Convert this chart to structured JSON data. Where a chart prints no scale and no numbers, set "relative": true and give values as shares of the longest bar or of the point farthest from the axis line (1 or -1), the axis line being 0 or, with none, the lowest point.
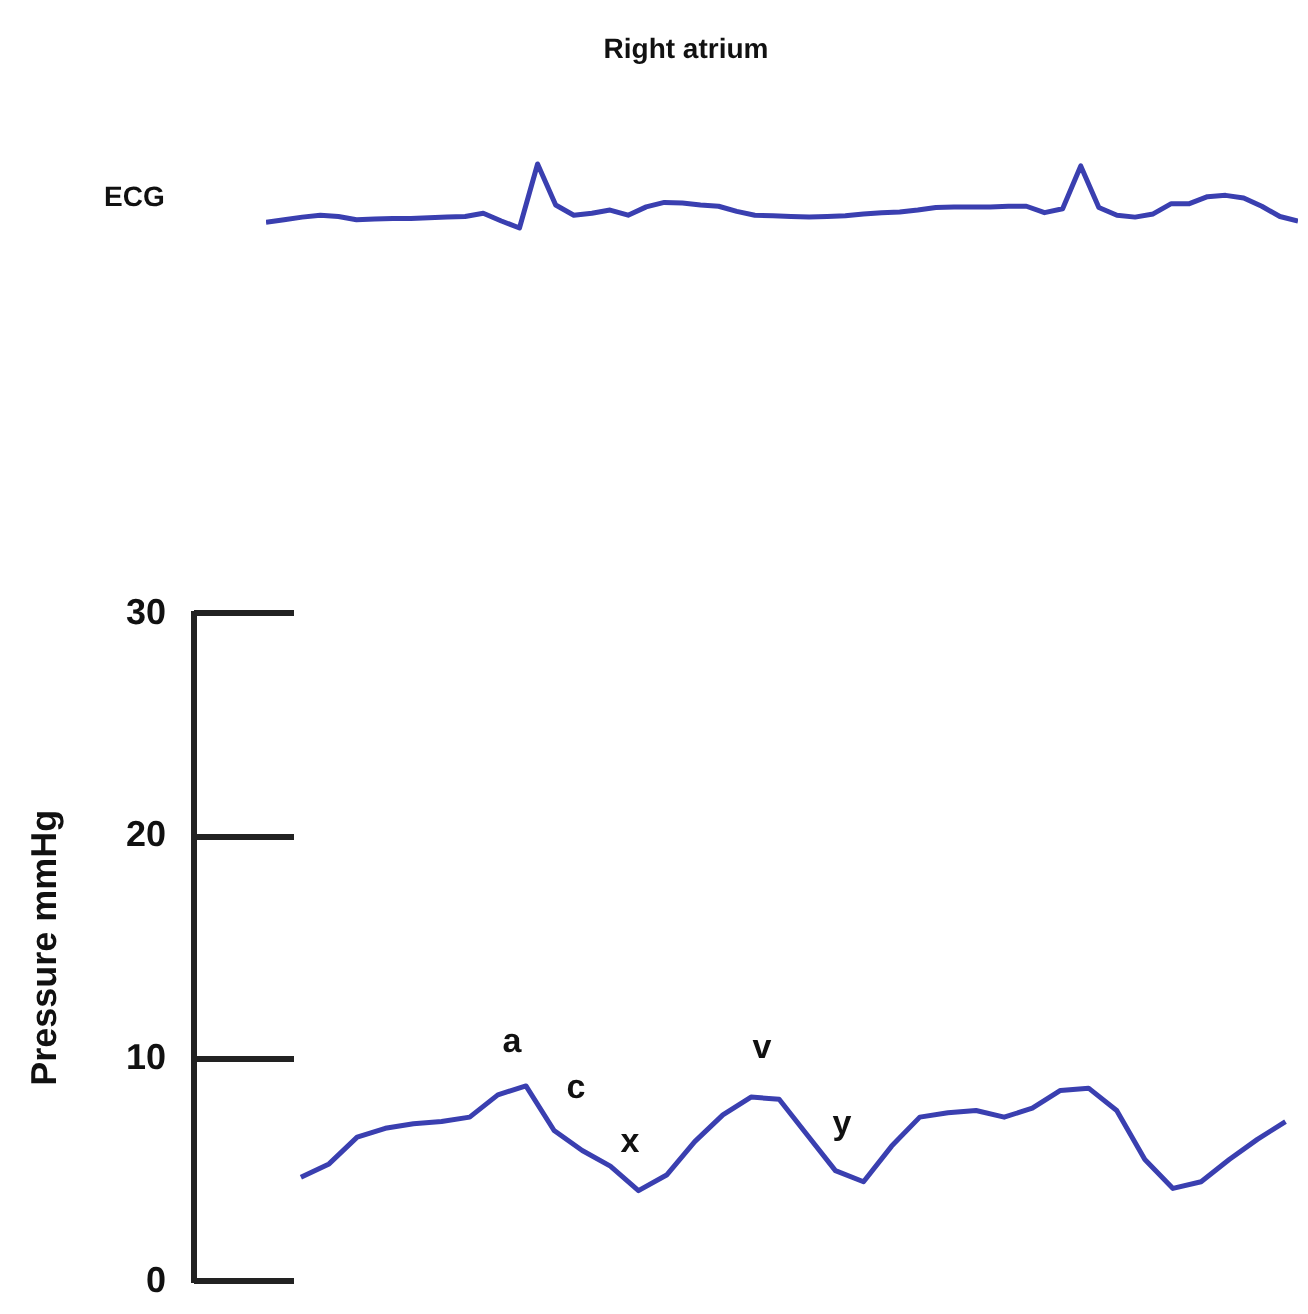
{
  "chart_data": [
    {
      "type": "line",
      "title": "Right atrium",
      "ylabel": "ECG",
      "relative": true,
      "tick_labels": false,
      "categories": [
        null,
        null,
        null,
        null,
        null,
        null,
        null,
        null,
        null,
        null,
        null,
        null,
        null,
        null,
        null,
        null,
        null,
        null,
        null,
        null,
        null,
        null,
        null,
        null,
        null,
        null,
        null,
        null,
        null,
        null,
        null,
        null,
        null,
        null,
        null,
        null,
        null,
        null,
        null,
        null,
        null,
        null,
        null,
        null,
        null,
        null,
        null,
        null,
        null,
        null,
        null,
        null,
        null,
        null,
        null,
        null,
        null,
        null
      ],
      "series": [
        {
          "color": "#3a3fb0",
          "values": [
            0.09,
            0.13,
            0.17,
            0.2,
            0.18,
            0.13,
            0.14,
            0.15,
            0.15,
            0.16,
            0.17,
            0.18,
            0.23,
            0.11,
            0,
            1,
            0.36,
            0.2,
            0.23,
            0.28,
            0.2,
            0.33,
            0.4,
            0.39,
            0.36,
            0.34,
            0.26,
            0.2,
            0.19,
            0.18,
            0.17,
            0.18,
            0.19,
            0.22,
            0.24,
            0.25,
            0.28,
            0.32,
            0.33,
            0.33,
            0.33,
            0.34,
            0.34,
            0.24,
            0.3,
            0.97,
            0.32,
            0.2,
            0.17,
            0.22,
            0.38,
            0.38,
            0.49,
            0.51,
            0.47,
            0.34,
            0.18,
            0.11
          ]
        }
      ]
    },
    {
      "type": "line",
      "ylabel": "Pressure mmHg",
      "tick_labels": "y",
      "ylim": [
        0,
        30
      ],
      "yticks": [
        0,
        10,
        20,
        30
      ],
      "categories": [
        null,
        null,
        null,
        null,
        null,
        null,
        null,
        null,
        null,
        null,
        null,
        null,
        null,
        null,
        null,
        null,
        null,
        null,
        null,
        null,
        null,
        null,
        null,
        null,
        null,
        null,
        null,
        null,
        null,
        null,
        null,
        null,
        null,
        null,
        null,
        null
      ],
      "series": [
        {
          "color": "#3a3fb0",
          "values": [
            4.7,
            5.3,
            6.5,
            6.9,
            7.1,
            7.2,
            7.4,
            8.4,
            8.8,
            6.8,
            5.9,
            5.2,
            4.1,
            4.8,
            6.3,
            7.5,
            8.3,
            8.2,
            6.6,
            5.0,
            4.5,
            6.1,
            7.4,
            7.6,
            7.7,
            7.4,
            7.8,
            8.6,
            8.7,
            7.7,
            5.5,
            4.2,
            4.5,
            5.5,
            6.4,
            7.2
          ]
        }
      ],
      "annotations": [
        "a",
        "c",
        "x",
        "v",
        "y"
      ]
    }
  ]
}
